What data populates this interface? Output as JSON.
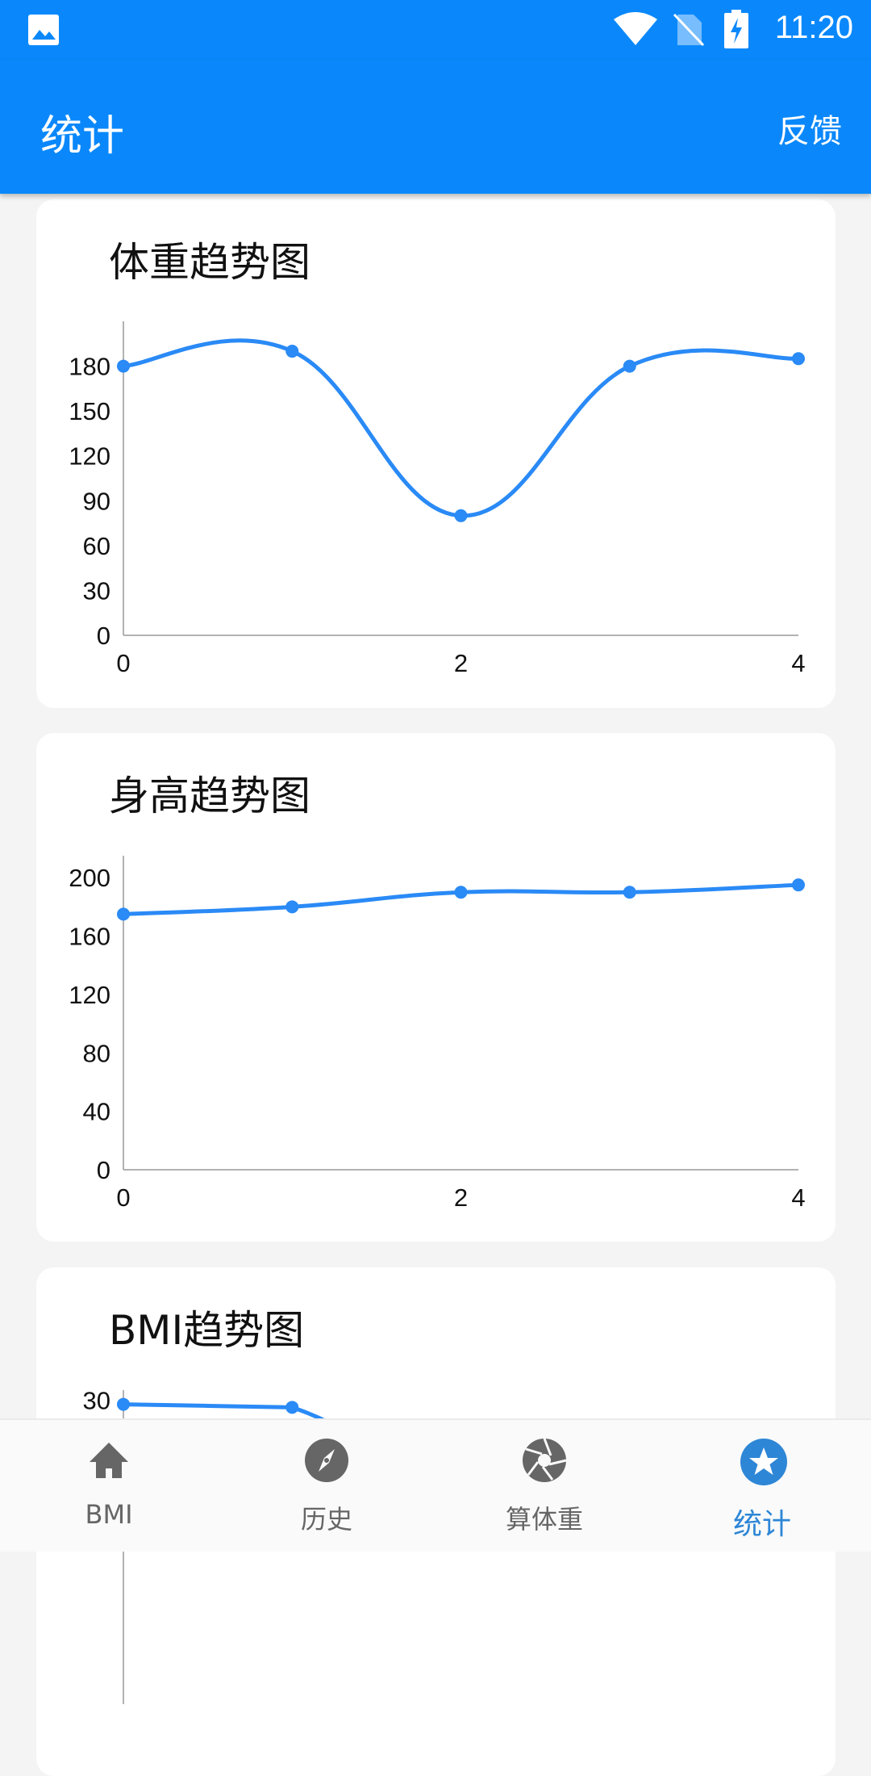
{
  "status_bar": {
    "time": "11:20",
    "icons": [
      "image-icon",
      "wifi-icon",
      "no-sim-icon",
      "battery-charging-icon"
    ]
  },
  "app_bar": {
    "title": "统计",
    "action": "反馈"
  },
  "colors": {
    "primary": "#0a88fb",
    "line": "#2a8af6",
    "nav_active": "#2e86d6",
    "nav_inactive": "#666666"
  },
  "cards": [
    {
      "title": "体重趋势图"
    },
    {
      "title": "身高趋势图"
    },
    {
      "title": "BMI趋势图"
    }
  ],
  "chart_data": [
    {
      "type": "line",
      "smooth": true,
      "x": [
        0,
        1,
        2,
        3,
        4
      ],
      "values": [
        180,
        190,
        80,
        180,
        185
      ],
      "yticks": [
        "0",
        "30",
        "60",
        "90",
        "120",
        "150",
        "180"
      ],
      "xticks": [
        "0",
        "2",
        "4"
      ],
      "ylim": [
        0,
        210
      ],
      "xlim": [
        0,
        4
      ],
      "grid": false
    },
    {
      "type": "line",
      "smooth": true,
      "x": [
        0,
        1,
        2,
        3,
        4
      ],
      "values": [
        175,
        180,
        190,
        190,
        195
      ],
      "yticks": [
        "0",
        "40",
        "80",
        "120",
        "160",
        "200"
      ],
      "xticks": [
        "0",
        "2",
        "4"
      ],
      "ylim": [
        0,
        215
      ],
      "xlim": [
        0,
        4
      ],
      "grid": false
    },
    {
      "type": "line",
      "smooth": true,
      "x": [
        0,
        1
      ],
      "values": [
        29.6,
        29.3
      ],
      "yticks": [
        "30"
      ],
      "xticks": [],
      "ylim": [
        0,
        31
      ],
      "xlim": [
        0,
        4
      ],
      "grid": false
    }
  ],
  "bottom_nav": [
    {
      "label": "BMI",
      "icon": "home-icon"
    },
    {
      "label": "历史",
      "icon": "compass-icon"
    },
    {
      "label": "算体重",
      "icon": "aperture-icon"
    },
    {
      "label": "统计",
      "icon": "star-icon",
      "active": true
    }
  ]
}
